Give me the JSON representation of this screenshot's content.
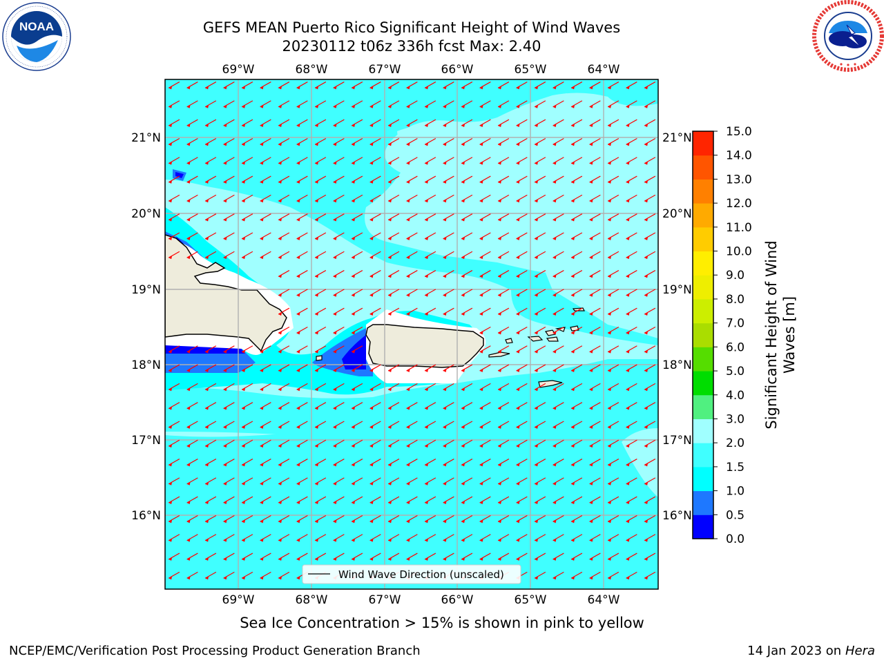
{
  "title": {
    "line1": "GEFS MEAN Puerto Rico Significant Height of Wind Waves",
    "line2": "20230112 t06z 336h fcst   Max: 2.40"
  },
  "logos": {
    "left": {
      "name": "noaa-logo",
      "text": "NOAA",
      "ring_text": "NATIONAL OCEANIC AND ATMOSPHERIC ADMINISTRATION · U.S. DEPARTMENT OF COMMERCE"
    },
    "right": {
      "name": "nws-logo",
      "ring_text": "NATIONAL WEATHER SERVICE"
    }
  },
  "map": {
    "region": "Puerto Rico",
    "lon_ticks": [
      "69°W",
      "68°W",
      "67°W",
      "66°W",
      "65°W",
      "64°W"
    ],
    "lat_ticks": [
      "21°N",
      "20°N",
      "19°N",
      "18°N",
      "17°N",
      "16°N"
    ],
    "lon_range": [
      -70.0,
      -63.25
    ],
    "lat_range": [
      15.0,
      21.75
    ],
    "grid": true,
    "legend_label": "Wind Wave Direction (unscaled)",
    "arrow_color": "#ff0000",
    "land_color": "#eeecdc",
    "coast_color": "#000000"
  },
  "colorbar": {
    "label": "Significant Height of Wind Waves [m]",
    "label_line1": "Significant Height of Wind",
    "label_line2": "Waves [m]",
    "ticks": [
      "0.0",
      "0.5",
      "1.0",
      "1.5",
      "2.0",
      "3.0",
      "4.0",
      "5.0",
      "6.0",
      "7.0",
      "8.0",
      "9.0",
      "10.0",
      "11.0",
      "12.0",
      "13.0",
      "14.0",
      "15.0"
    ],
    "colors": [
      "#0000ff",
      "#1e78ff",
      "#00ffff",
      "#40ffff",
      "#a0ffff",
      "#50f080",
      "#00dd00",
      "#55dd00",
      "#aadd00",
      "#ccee00",
      "#eeee00",
      "#ffee00",
      "#ffcc00",
      "#ffaa00",
      "#ff8000",
      "#ff5500",
      "#ff2500"
    ]
  },
  "ice_note": "Sea Ice Concentration > 15% is shown in pink to yellow",
  "footer": {
    "credit": "NCEP/EMC/Verification Post Processing Product Generation Branch",
    "date_prefix": "14 Jan 2023 on ",
    "machine": "Hera"
  }
}
